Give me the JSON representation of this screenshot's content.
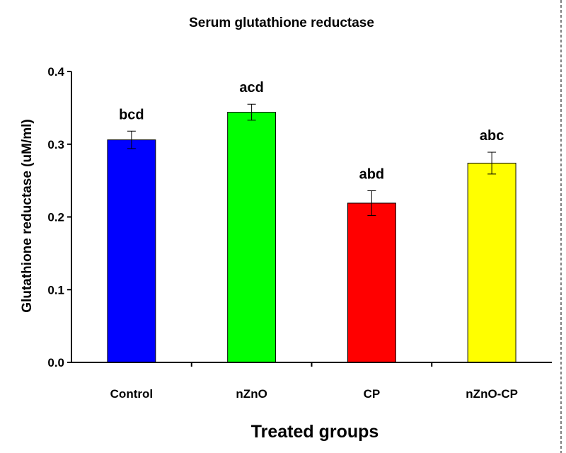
{
  "chart_data": {
    "type": "bar",
    "title": "Serum glutathione reductase",
    "xlabel": "Treated groups",
    "ylabel": "Glutathione reductase (uM/ml)",
    "categories": [
      "Control",
      "nZnO",
      "CP",
      "nZnO-CP"
    ],
    "values": [
      0.306,
      0.344,
      0.219,
      0.274
    ],
    "errors": [
      0.012,
      0.011,
      0.017,
      0.015
    ],
    "significance_labels": [
      "bcd",
      "acd",
      "abd",
      "abc"
    ],
    "colors": [
      "#0000FF",
      "#00FF00",
      "#FF0000",
      "#FFFF00"
    ],
    "ylim": [
      0,
      0.4
    ],
    "yticks": [
      0.0,
      0.1,
      0.2,
      0.3,
      0.4
    ],
    "ytick_labels": [
      "0.0",
      "0.1",
      "0.2",
      "0.3",
      "0.4"
    ],
    "grid": false
  }
}
